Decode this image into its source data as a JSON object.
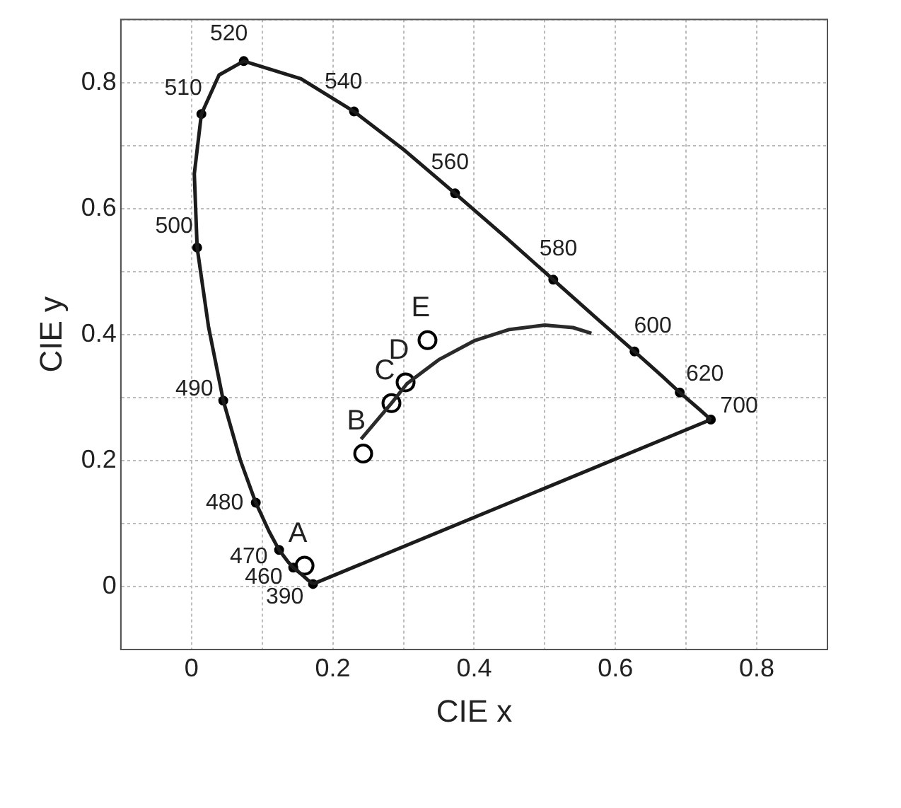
{
  "chart_data": {
    "type": "line",
    "xlabel": "CIE x",
    "ylabel": "CIE y",
    "xlim": [
      -0.1,
      0.9
    ],
    "ylim": [
      -0.1,
      0.9
    ],
    "xticks": [
      {
        "value": -0.1,
        "label": null
      },
      0,
      {
        "value": 0.1,
        "label": null
      },
      0.2,
      {
        "value": 0.3,
        "label": null
      },
      0.4,
      {
        "value": 0.5,
        "label": null
      },
      0.6,
      {
        "value": 0.7,
        "label": null
      },
      0.8,
      {
        "value": 0.9,
        "label": null
      }
    ],
    "yticks": [
      {
        "value": -0.1,
        "label": null
      },
      0,
      {
        "value": 0.1,
        "label": null
      },
      0.2,
      {
        "value": 0.3,
        "label": null
      },
      0.4,
      {
        "value": 0.5,
        "label": null
      },
      0.6,
      {
        "value": 0.7,
        "label": null
      },
      0.8,
      {
        "value": 0.9,
        "label": null
      }
    ],
    "grid": true,
    "legend": false,
    "series": [
      {
        "type": "line",
        "color": "#1c1c1c",
        "marker": "none",
        "line_style": "solid",
        "x": [
          0.735,
          0.172
        ],
        "values": [
          0.265,
          0.004
        ]
      },
      {
        "type": "line",
        "color": "#1c1c1c",
        "marker": "none",
        "line_style": "solid",
        "x": [
          0.172,
          0.171,
          0.164,
          0.157,
          0.144,
          0.136,
          0.124,
          0.11,
          0.091,
          0.069,
          0.045,
          0.024,
          0.008,
          0.004,
          0.014,
          0.039,
          0.074,
          0.155,
          0.23,
          0.302,
          0.373,
          0.444,
          0.512,
          0.575,
          0.627,
          0.666,
          0.691,
          0.719,
          0.735
        ],
        "values": [
          0.004,
          0.005,
          0.011,
          0.018,
          0.03,
          0.04,
          0.058,
          0.087,
          0.133,
          0.201,
          0.295,
          0.413,
          0.538,
          0.655,
          0.75,
          0.812,
          0.834,
          0.806,
          0.754,
          0.692,
          0.624,
          0.555,
          0.487,
          0.424,
          0.373,
          0.334,
          0.308,
          0.281,
          0.265
        ]
      },
      {
        "type": "scatter",
        "color": "#000000",
        "marker": "circle",
        "x": [
          0.172,
          0.144,
          0.124,
          0.091,
          0.045,
          0.008,
          0.014,
          0.074,
          0.23,
          0.373,
          0.512,
          0.627,
          0.691,
          0.735
        ],
        "values": [
          0.004,
          0.03,
          0.058,
          0.133,
          0.295,
          0.538,
          0.75,
          0.834,
          0.754,
          0.624,
          0.487,
          0.373,
          0.308,
          0.265
        ]
      },
      {
        "type": "line",
        "color": "#2a2a2a",
        "marker": "none",
        "line_style": "solid",
        "x": [
          0.24,
          0.265,
          0.283,
          0.305,
          0.35,
          0.4,
          0.45,
          0.5,
          0.54,
          0.566
        ],
        "values": [
          0.234,
          0.267,
          0.291,
          0.322,
          0.36,
          0.39,
          0.408,
          0.415,
          0.411,
          0.402
        ]
      },
      {
        "type": "scatter",
        "color": "#ffffff",
        "marker": "circle",
        "x": [
          0.16,
          0.243,
          0.283,
          0.303,
          0.334
        ],
        "values": [
          0.033,
          0.211,
          0.291,
          0.324,
          0.391
        ]
      }
    ],
    "annotations": [
      {
        "text": "390",
        "x": 0.172,
        "y": 0.004
      },
      {
        "text": "460",
        "x": 0.144,
        "y": 0.03
      },
      {
        "text": "470",
        "x": 0.124,
        "y": 0.058
      },
      {
        "text": "480",
        "x": 0.091,
        "y": 0.133
      },
      {
        "text": "490",
        "x": 0.045,
        "y": 0.295
      },
      {
        "text": "500",
        "x": 0.008,
        "y": 0.538
      },
      {
        "text": "510",
        "x": 0.014,
        "y": 0.75
      },
      {
        "text": "520",
        "x": 0.074,
        "y": 0.834
      },
      {
        "text": "540",
        "x": 0.23,
        "y": 0.754
      },
      {
        "text": "560",
        "x": 0.373,
        "y": 0.624
      },
      {
        "text": "580",
        "x": 0.512,
        "y": 0.487
      },
      {
        "text": "600",
        "x": 0.627,
        "y": 0.373
      },
      {
        "text": "620",
        "x": 0.691,
        "y": 0.308
      },
      {
        "text": "700",
        "x": 0.735,
        "y": 0.265
      },
      {
        "text": "A",
        "x": 0.16,
        "y": 0.033
      },
      {
        "text": "B",
        "x": 0.243,
        "y": 0.211
      },
      {
        "text": "C",
        "x": 0.283,
        "y": 0.291
      },
      {
        "text": "D",
        "x": 0.303,
        "y": 0.324
      },
      {
        "text": "E",
        "x": 0.334,
        "y": 0.391
      }
    ]
  }
}
